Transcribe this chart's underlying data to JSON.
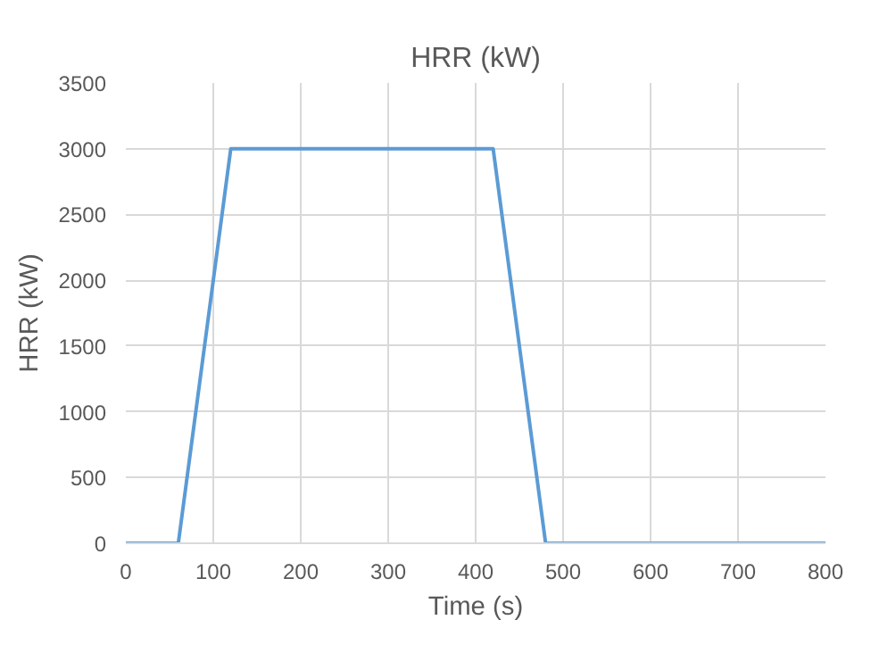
{
  "chart_data": {
    "type": "line",
    "title": "HRR (kW)",
    "xlabel": "Time (s)",
    "ylabel": "HRR (kW)",
    "x": [
      0,
      60,
      120,
      420,
      480,
      800
    ],
    "series": [
      {
        "color": "#5b9bd5",
        "values": [
          0,
          0,
          3000,
          3000,
          0,
          0
        ]
      }
    ],
    "xlim": [
      0,
      800
    ],
    "xticks": [
      0,
      100,
      200,
      300,
      400,
      500,
      600,
      700,
      800
    ],
    "ylim": [
      0,
      3500
    ],
    "yticks": [
      0,
      500,
      1000,
      1500,
      2000,
      2500,
      3000,
      3500
    ],
    "grid": true,
    "marker": "none",
    "line_style": "solid"
  }
}
